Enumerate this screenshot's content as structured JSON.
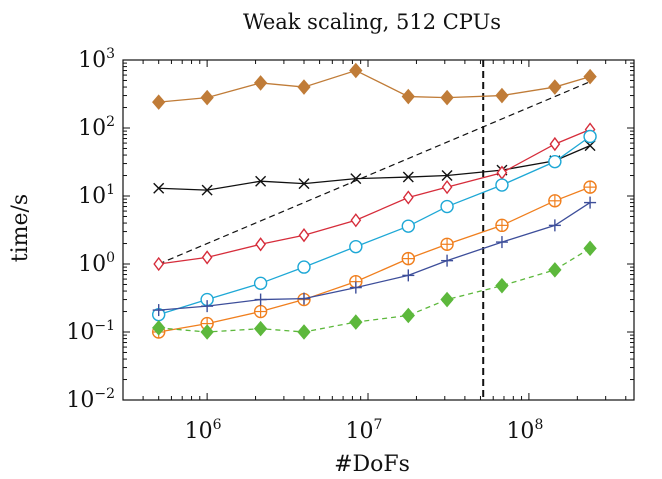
{
  "chart_data": {
    "type": "line",
    "title": "Weak scaling, 512 CPUs",
    "xlabel": "#DoFs",
    "ylabel": "time/s",
    "x_scale": "log",
    "y_scale": "log",
    "xlim": [
      300000,
      450000000
    ],
    "ylim": [
      0.01,
      1000
    ],
    "x_ticks": [
      {
        "value": 1000000,
        "base": "10",
        "exp": "6"
      },
      {
        "value": 10000000,
        "base": "10",
        "exp": "7"
      },
      {
        "value": 100000000,
        "base": "10",
        "exp": "8"
      }
    ],
    "y_ticks": [
      {
        "value": 0.01,
        "base": "10",
        "exp": "−2"
      },
      {
        "value": 0.1,
        "base": "10",
        "exp": "−1"
      },
      {
        "value": 1,
        "base": "10",
        "exp": "0"
      },
      {
        "value": 10,
        "base": "10",
        "exp": "1"
      },
      {
        "value": 100,
        "base": "10",
        "exp": "2"
      },
      {
        "value": 1000,
        "base": "10",
        "exp": "3"
      }
    ],
    "grid": false,
    "x": [
      500000,
      1000000,
      2150000,
      4000000,
      8400000,
      17800000,
      31000000,
      68000000,
      145000000,
      240000000
    ],
    "series": [
      {
        "color": "#c07c38",
        "marker": "diamond-filled",
        "dash": "solid",
        "values": [
          240,
          280,
          460,
          400,
          700,
          290,
          280,
          300,
          400,
          570
        ]
      },
      {
        "color": "#111111",
        "marker": "x",
        "dash": "solid",
        "values": [
          13,
          12.2,
          16.5,
          15.2,
          18,
          19,
          20,
          24,
          33,
          55
        ]
      },
      {
        "color": "#d62d3b",
        "marker": "diamond-open",
        "dash": "solid",
        "values": [
          1.0,
          1.25,
          1.95,
          2.65,
          4.4,
          9.5,
          13.5,
          22,
          58,
          95
        ]
      },
      {
        "color": "#1ea8d6",
        "marker": "circle-open",
        "dash": "solid",
        "values": [
          0.18,
          0.3,
          0.52,
          0.9,
          1.8,
          3.6,
          7.0,
          14.5,
          32,
          75
        ]
      },
      {
        "color": "#f07f1e",
        "marker": "circle-plus",
        "dash": "solid",
        "values": [
          0.1,
          0.133,
          0.2,
          0.3,
          0.55,
          1.2,
          1.95,
          3.7,
          8.5,
          13.5
        ]
      },
      {
        "color": "#3d4e9a",
        "marker": "plus",
        "dash": "solid",
        "values": [
          0.21,
          0.24,
          0.3,
          0.31,
          0.45,
          0.68,
          1.12,
          2.1,
          3.7,
          8
        ]
      },
      {
        "color": "#5db83c",
        "marker": "diamond-filled",
        "dash": "dashed",
        "values": [
          0.115,
          0.1,
          0.112,
          0.1,
          0.14,
          0.175,
          0.3,
          0.48,
          0.82,
          1.7
        ]
      }
    ],
    "reference_line": {
      "color": "#111111",
      "dash": "dashed",
      "x": [
        500000,
        240000000
      ],
      "y": [
        1.0,
        480
      ]
    },
    "vertical_line": {
      "color": "#111111",
      "dash": "dashed",
      "x": 52000000
    }
  }
}
